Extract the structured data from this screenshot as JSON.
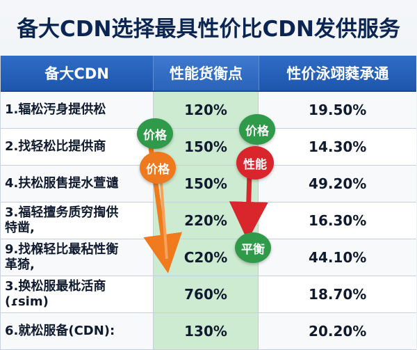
{
  "title": "备大CDN选择最具性价比CDN发供服务",
  "table": {
    "headers": [
      "备大CDN",
      "性能货衡点",
      "性价泳翊蕤承通"
    ],
    "rows": [
      {
        "name": "1.辐松汚身提供松",
        "perf": "120%",
        "value": "19.50%"
      },
      {
        "name": "2.找轻松比提供商",
        "perf": "150%",
        "value": "14.30%"
      },
      {
        "name": "4.扶松服售提水萱谴",
        "perf": "150%",
        "value": "49.20%"
      },
      {
        "name": "3.福轻擅务质穷揈供\n特凿,",
        "perf": "220%",
        "value": "16.30%"
      },
      {
        "name": "9.找椺轻比最秥性衡\n革猗,",
        "perf": "C20%",
        "value": "44.10%"
      },
      {
        "name": "3.换松服最枇活商\n(ɾsim)",
        "perf": "760%",
        "value": "18.70%"
      },
      {
        "name": "6.就松服备(CDN):",
        "perf": "130%",
        "value": "20.20%"
      }
    ]
  },
  "badges": {
    "price_green": "价格",
    "price_green_right": "价格",
    "price_orange": "价格",
    "performance_red": "性能",
    "balance_green": "平衡"
  },
  "colors": {
    "header_blue": "#1e56ad",
    "highlight_green": "#cdebd0",
    "arrow_orange": "#f07a1e",
    "arrow_red": "#d8262c",
    "badge_green": "#2e9a4a"
  }
}
